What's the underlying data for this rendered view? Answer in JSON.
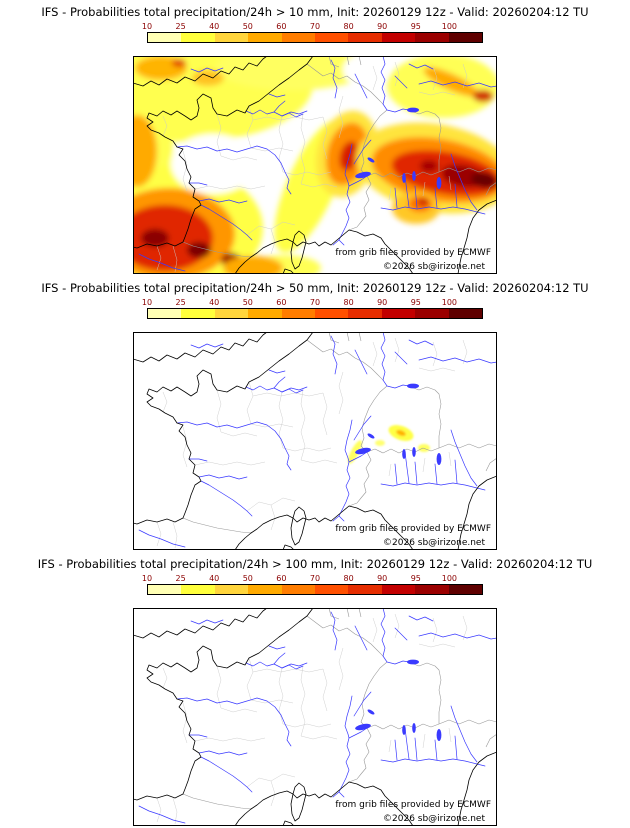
{
  "page": {
    "background": "#ffffff"
  },
  "panels": [
    {
      "title": "IFS - Probabilities total precipitation/24h > 10 mm, Init: 20260129 12z - Valid: 20260204:12 TU"
    },
    {
      "title": "IFS - Probabilities total precipitation/24h > 50 mm, Init: 20260129 12z - Valid: 20260204:12 TU"
    },
    {
      "title": "IFS - Probabilities total precipitation/24h > 100 mm, Init: 20260129 12z - Valid: 20260204:12 TU"
    }
  ],
  "colorbar": {
    "ticks": [
      "10",
      "25",
      "40",
      "50",
      "60",
      "70",
      "80",
      "90",
      "95",
      "100"
    ],
    "colors": [
      "#ffffb4",
      "#ffff3c",
      "#ffd53c",
      "#ffaa00",
      "#ff7d00",
      "#ff5000",
      "#e62d00",
      "#c30000",
      "#9b0000",
      "#5f0000"
    ],
    "tick_color": "#8b0000"
  },
  "attribution": {
    "line1": "from grib files provided by ECMWF",
    "line2": "©2026 sb@irizone.net"
  },
  "map": {
    "coast_color": "#000000",
    "river_color": "#3a3aff",
    "border_color": "#999999",
    "detail_color": "#c9c9c9"
  }
}
